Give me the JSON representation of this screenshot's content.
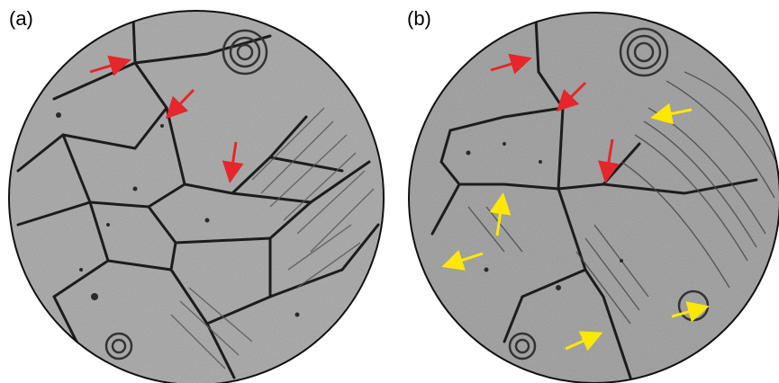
{
  "panels": [
    {
      "label": "(a)"
    },
    {
      "label": "(b)"
    }
  ],
  "colors": {
    "red_arrow": "#e5262b",
    "yellow_arrow": "#ffe800",
    "outline": "#111111",
    "background": "#9a9a9a"
  },
  "icons": [
    "red-arrow-icon",
    "yellow-arrow-icon"
  ]
}
